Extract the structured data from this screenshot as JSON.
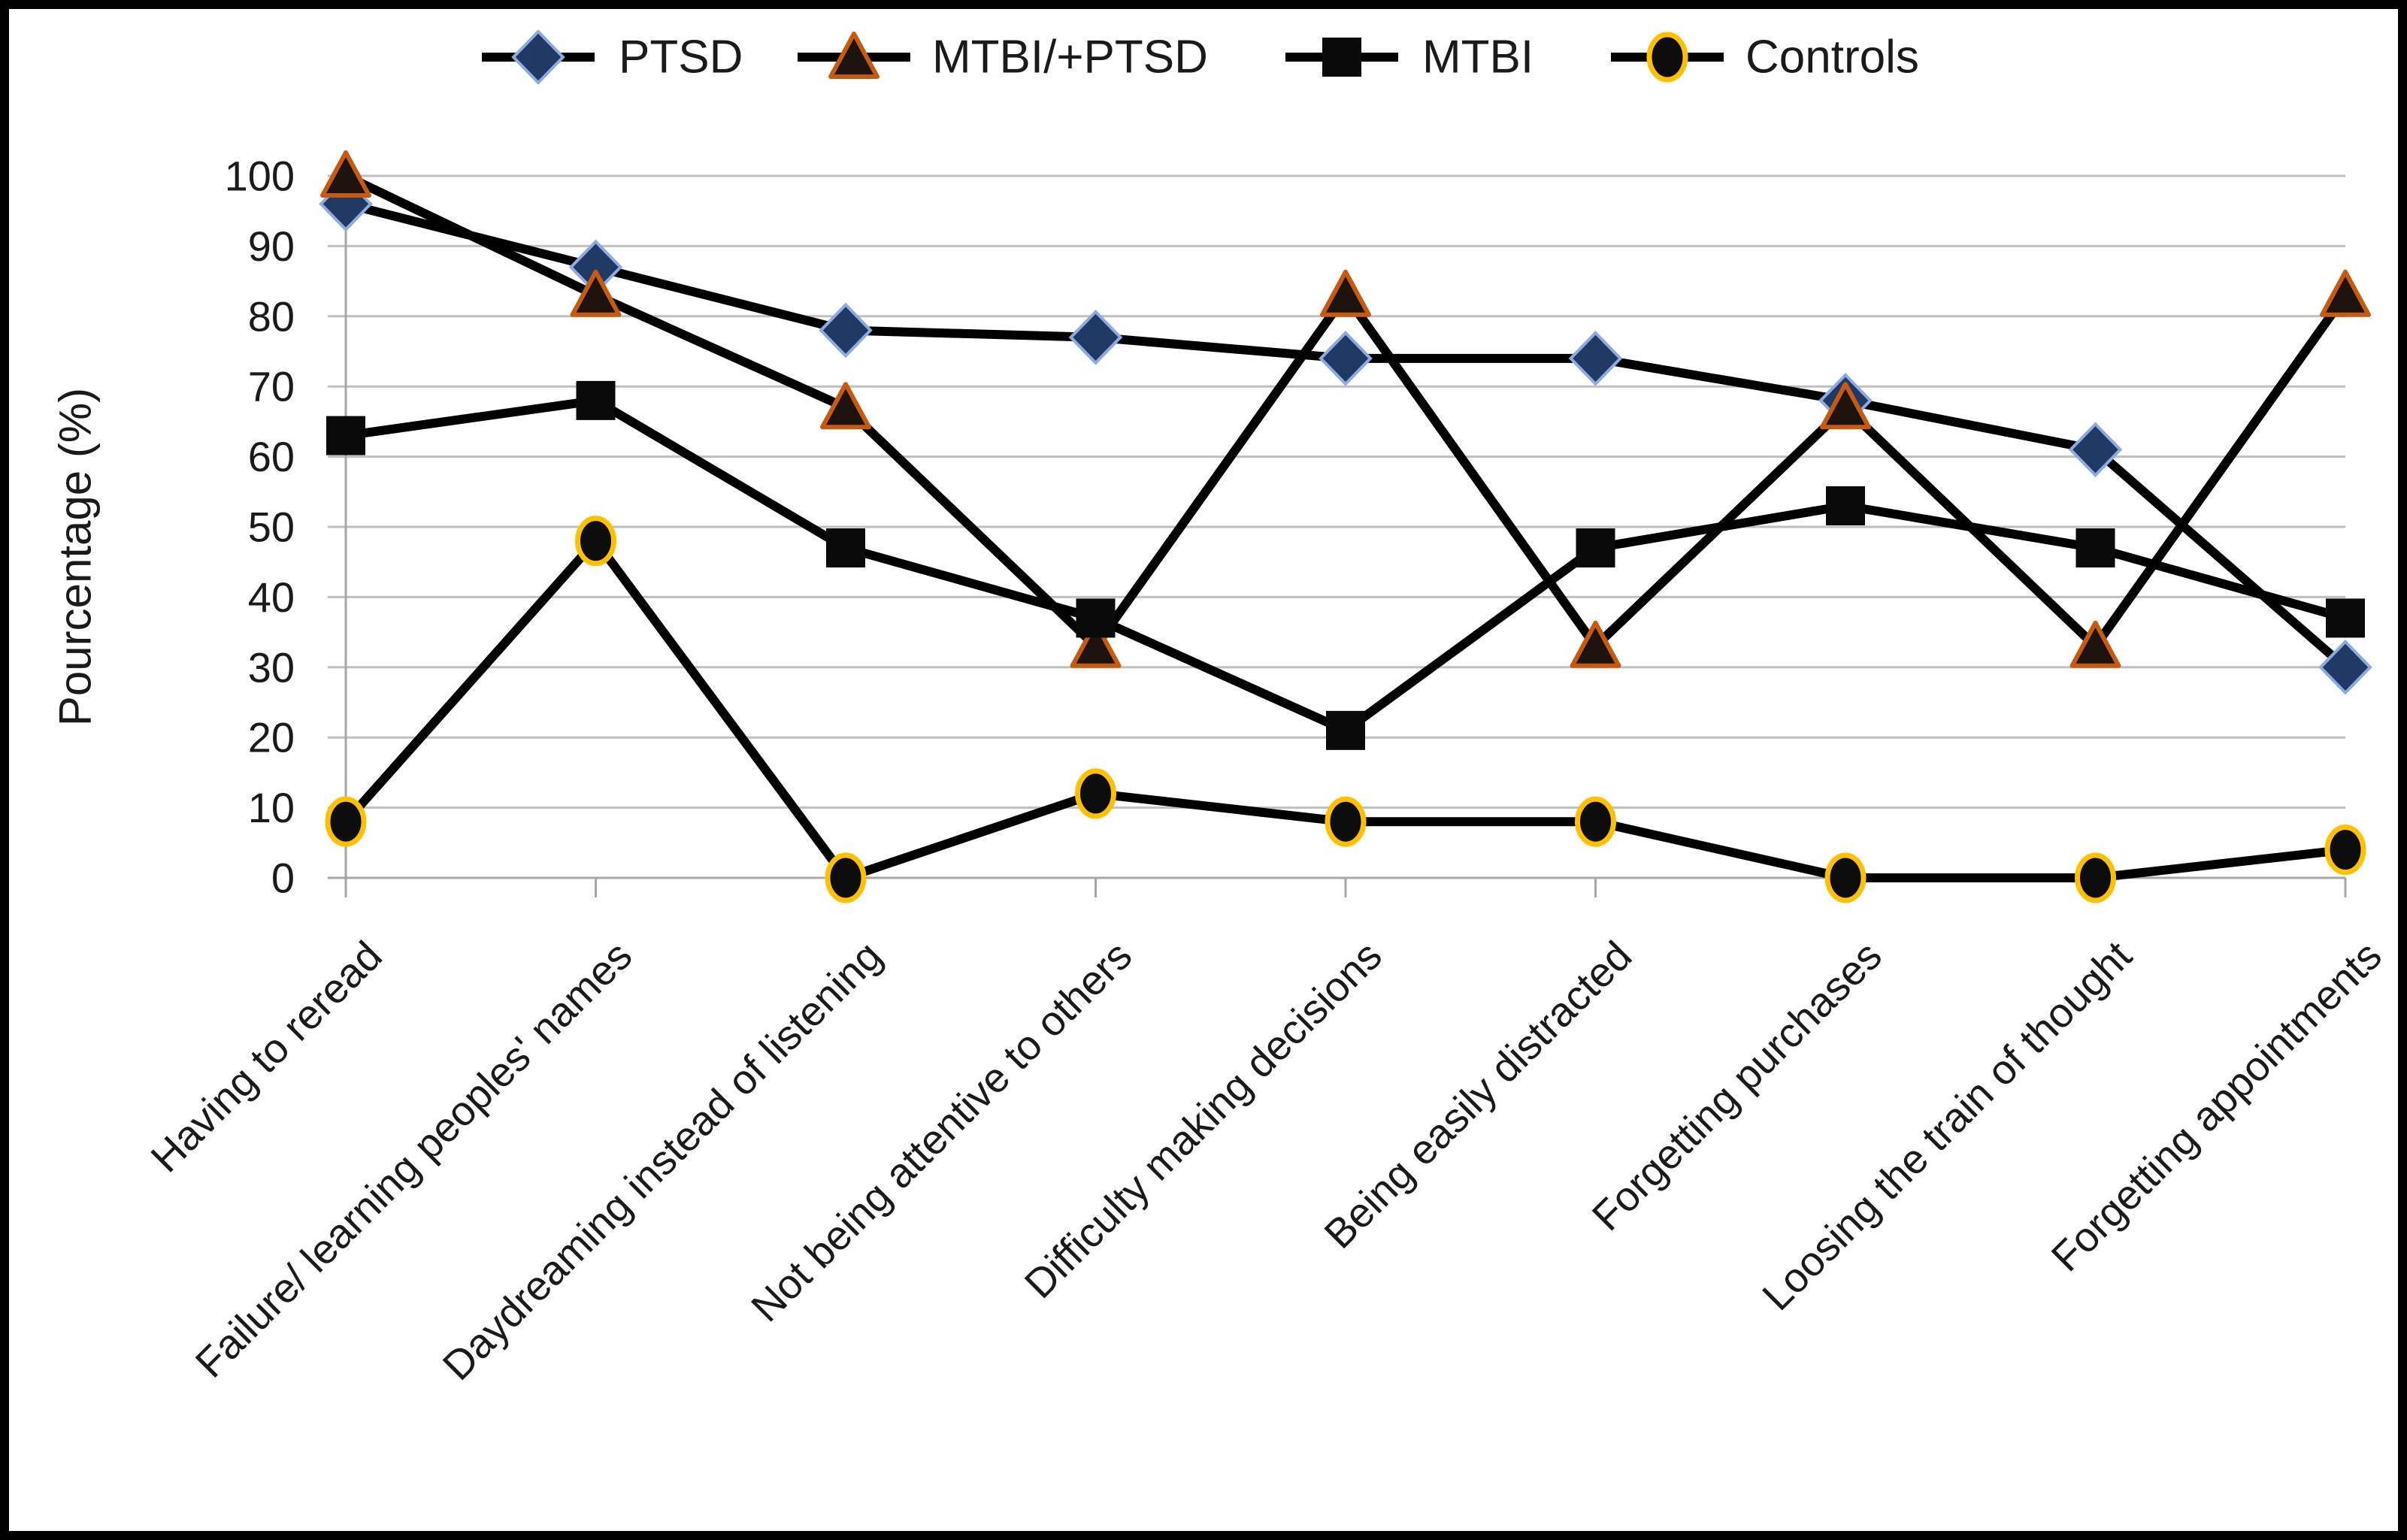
{
  "chart_data": {
    "type": "line",
    "title": "",
    "ylabel": "Pourcentage (%)",
    "xlabel": "",
    "ylim": [
      0,
      100
    ],
    "ytick_step": 10,
    "ytick_labels": [
      "0",
      "10",
      "20",
      "30",
      "40",
      "50",
      "60",
      "70",
      "80",
      "90",
      "100"
    ],
    "grid": "horizontal",
    "legend_position": "top",
    "categories": [
      "Having to reread",
      "Failure/ learning peoples' names",
      "Daydreaming instead of listening",
      "Not being attentive to others",
      "Difficulty making decisions",
      "Being easily distracted",
      "Forgetting purchases",
      "Loosing the train of thought",
      "Forgetting appointments"
    ],
    "series": [
      {
        "name": "PTSD",
        "marker": "diamond",
        "marker_fill": "#1F3864",
        "marker_stroke": "#8FAADC",
        "values": [
          96,
          87,
          78,
          77,
          74,
          74,
          68,
          61,
          30
        ]
      },
      {
        "name": "MTBI/+PTSD",
        "marker": "triangle",
        "marker_fill": "#1E130C",
        "marker_stroke": "#C55A11",
        "values": [
          100,
          83,
          67,
          33,
          83,
          33,
          67,
          33,
          83
        ]
      },
      {
        "name": "MTBI",
        "marker": "square",
        "marker_fill": "#0A0A0A",
        "marker_stroke": "none",
        "values": [
          63,
          68,
          47,
          37,
          21,
          47,
          53,
          47,
          37
        ]
      },
      {
        "name": "Controls",
        "marker": "circle",
        "marker_fill": "#0D0D0D",
        "marker_stroke": "#FFC000",
        "values": [
          8,
          48,
          0,
          12,
          8,
          8,
          0,
          0,
          4
        ]
      }
    ],
    "colors": {
      "line": "#000000",
      "grid": "#BFBFBF",
      "axis": "#A6A6A6",
      "text": "#1A1A1A",
      "background": "#FFFFFF",
      "border": "#000000"
    }
  }
}
